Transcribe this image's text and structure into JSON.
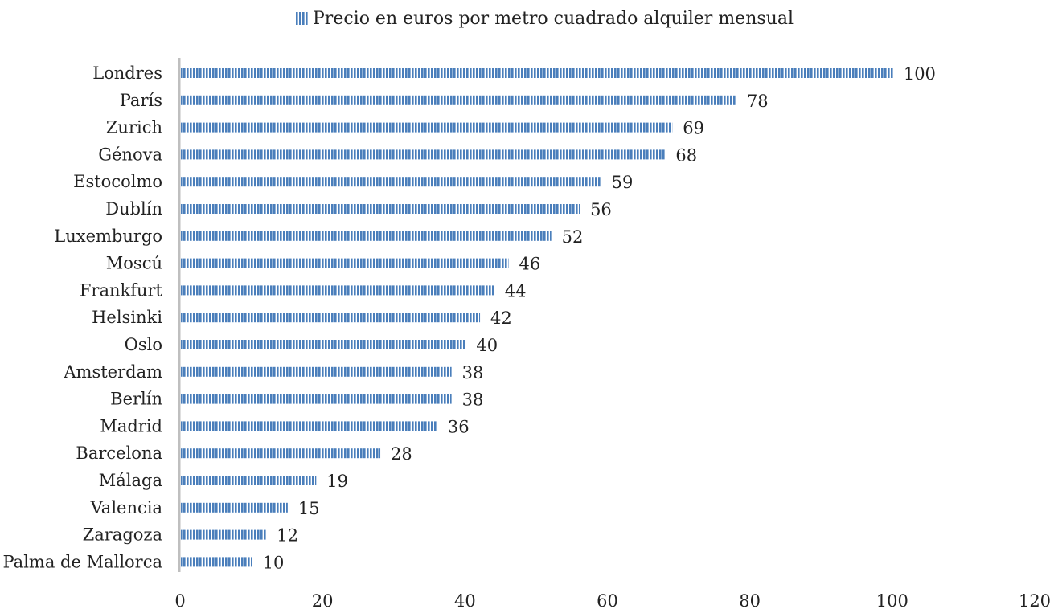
{
  "colors": {
    "bar": "#4a7ebb",
    "bar_stripe": "#ffffff",
    "axis": "#bfbfbf",
    "text": "#222222"
  },
  "chart_data": {
    "type": "bar",
    "orientation": "horizontal",
    "title": "",
    "xlabel": "",
    "ylabel": "",
    "xlim": [
      0,
      120
    ],
    "xticks": [
      0,
      20,
      40,
      60,
      80,
      100,
      120
    ],
    "grid": false,
    "legend_position": "top",
    "pattern": "vertical-stripes",
    "categories": [
      "Londres",
      "París",
      "Zurich",
      "Génova",
      "Estocolmo",
      "Dublín",
      "Luxemburgo",
      "Moscú",
      "Frankfurt",
      "Helsinki",
      "Oslo",
      "Amsterdam",
      "Berlín",
      "Madrid",
      "Barcelona",
      "Málaga",
      "Valencia",
      "Zaragoza",
      "Palma de Mallorca"
    ],
    "series": [
      {
        "name": "Precio en euros por metro cuadrado alquiler mensual",
        "values": [
          100,
          78,
          69,
          68,
          59,
          56,
          52,
          46,
          44,
          42,
          40,
          38,
          38,
          36,
          28,
          19,
          15,
          12,
          10
        ]
      }
    ]
  }
}
